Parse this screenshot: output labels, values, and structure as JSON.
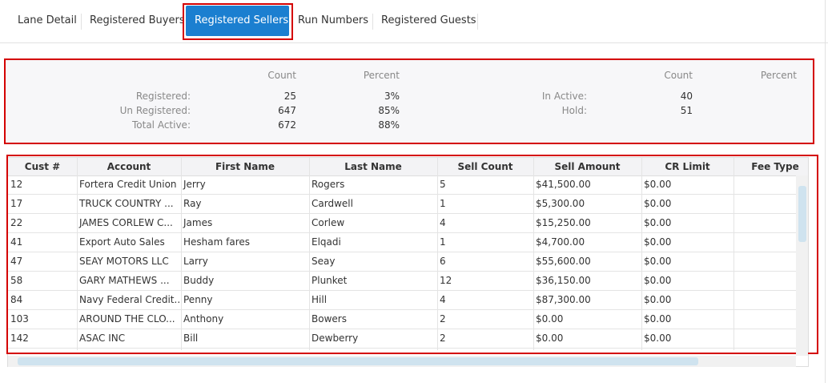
{
  "tabs": [
    "Lane Detail",
    "Registered Buyers",
    "Registered Sellers",
    "Run Numbers",
    "Registered Guests"
  ],
  "active_tab": 2,
  "summary": {
    "left": {
      "headers": [
        "Count",
        "Percent"
      ],
      "rows": [
        [
          "Registered:",
          "25",
          "3%"
        ],
        [
          "Un Registered:",
          "647",
          "85%"
        ],
        [
          "Total Active:",
          "672",
          "88%"
        ]
      ]
    },
    "right": {
      "headers": [
        "Count",
        "Percent"
      ],
      "rows": [
        [
          "In Active:",
          "40"
        ],
        [
          "Hold:",
          "51"
        ]
      ]
    }
  },
  "table": {
    "columns": [
      "Cust #",
      "Account",
      "First Name",
      "Last Name",
      "Sell Count",
      "Sell Amount",
      "CR Limit",
      "Fee Type"
    ],
    "rows": [
      [
        "12",
        "Fortera Credit Union",
        "Jerry",
        "Rogers",
        "5",
        "$41,500.00",
        "$0.00",
        ""
      ],
      [
        "17",
        "TRUCK COUNTRY ...",
        "Ray",
        "Cardwell",
        "1",
        "$5,300.00",
        "$0.00",
        ""
      ],
      [
        "22",
        "JAMES CORLEW C...",
        "James",
        "Corlew",
        "4",
        "$15,250.00",
        "$0.00",
        ""
      ],
      [
        "41",
        "Export Auto Sales",
        "Hesham fares",
        "Elqadi",
        "1",
        "$4,700.00",
        "$0.00",
        ""
      ],
      [
        "47",
        "SEAY MOTORS LLC",
        "Larry",
        "Seay",
        "6",
        "$55,600.00",
        "$0.00",
        ""
      ],
      [
        "58",
        "GARY MATHEWS ...",
        "Buddy",
        "Plunket",
        "12",
        "$36,150.00",
        "$0.00",
        ""
      ],
      [
        "84",
        "Navy Federal Credit...",
        "Penny",
        "Hill",
        "4",
        "$87,300.00",
        "$0.00",
        ""
      ],
      [
        "103",
        "AROUND THE CLO...",
        "Anthony",
        "Bowers",
        "2",
        "$0.00",
        "$0.00",
        ""
      ],
      [
        "142",
        "ASAC INC",
        "Bill",
        "Dewberry",
        "2",
        "$0.00",
        "$0.00",
        ""
      ]
    ]
  }
}
